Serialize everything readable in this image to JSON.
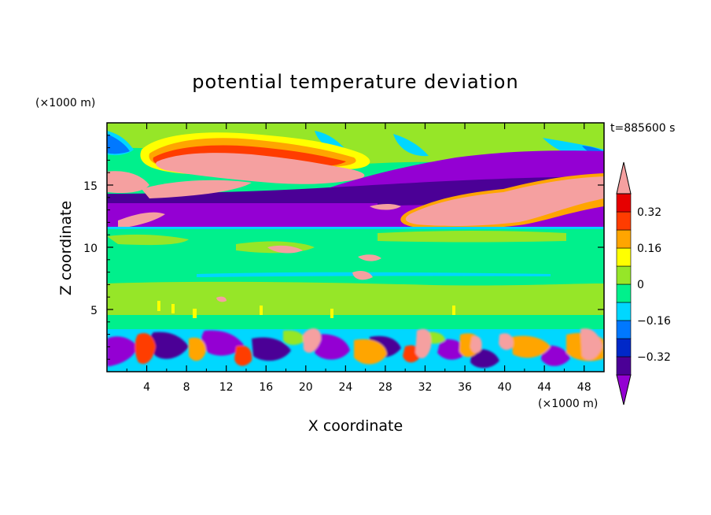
{
  "chart_data": {
    "type": "heatmap",
    "title": "potential temperature deviation",
    "xlabel": "X coordinate",
    "ylabel": "Z coordinate",
    "x_unit": "(×1000 m)",
    "y_unit": "(×1000 m)",
    "time_label": "t=885600 s",
    "xlim": [
      0,
      50
    ],
    "ylim": [
      0,
      20
    ],
    "x_ticks": [
      4,
      8,
      12,
      16,
      20,
      24,
      28,
      32,
      36,
      40,
      44,
      48
    ],
    "x_tick_labels": [
      "4",
      "8",
      "12",
      "16",
      "20",
      "24",
      "28",
      "32",
      "36",
      "40",
      "44",
      "48"
    ],
    "y_ticks": [
      5,
      10,
      15
    ],
    "y_tick_labels": [
      "5",
      "10",
      "15"
    ],
    "colorbar": {
      "levels": [
        -0.4,
        -0.32,
        -0.24,
        -0.16,
        -0.08,
        0,
        0.08,
        0.16,
        0.24,
        0.32,
        0.4
      ],
      "labeled_levels": [
        0.32,
        0.16,
        0,
        -0.16,
        -0.32
      ],
      "labels": [
        "0.32",
        "0.16",
        "0",
        "−0.16",
        "−0.32"
      ],
      "colors_low_to_high": [
        "#9400d3",
        "#4b0096",
        "#0028c8",
        "#0078ff",
        "#00d7ff",
        "#00f08c",
        "#96e628",
        "#ffff00",
        "#ffa500",
        "#ff3c00",
        "#e60000",
        "#f5a0a0"
      ],
      "extend": "both"
    }
  }
}
